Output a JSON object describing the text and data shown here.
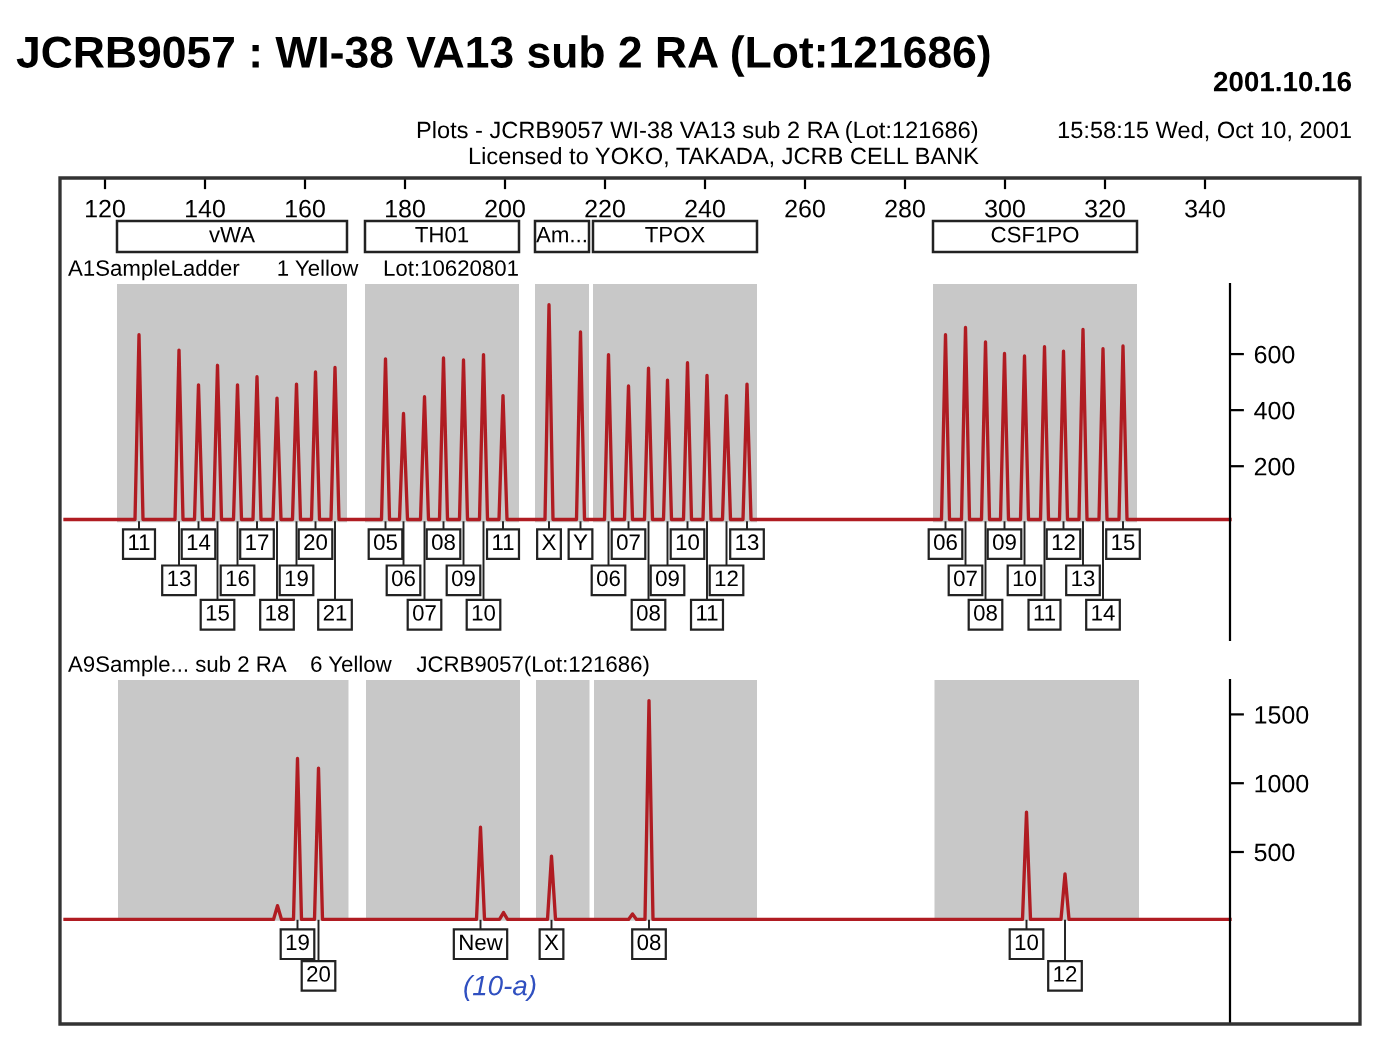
{
  "chart_data": [
    {
      "type": "line",
      "title": "JCRB9057 : WI-38 VA13 sub 2 RA (Lot:121686)",
      "subtitle": "A1SampleLadder      1 Yellow    Lot:10620801",
      "xlim": [
        111,
        371
      ],
      "xticks": [
        120,
        140,
        160,
        180,
        200,
        220,
        240,
        260,
        280,
        300,
        320,
        340
      ],
      "ylim": [
        -420,
        850
      ],
      "yticks": [
        200,
        400,
        600
      ],
      "grid": false,
      "bands": [
        {
          "axis": "x",
          "from": 122.4,
          "to": 168.4,
          "label": "vWA",
          "color": "#c8c8c8"
        },
        {
          "axis": "x",
          "from": 172,
          "to": 202.8,
          "label": "TH01",
          "color": "#c8c8c8"
        },
        {
          "axis": "x",
          "from": 206,
          "to": 216.8,
          "label": "Am...",
          "color": "#c8c8c8"
        },
        {
          "axis": "x",
          "from": 217.6,
          "to": 250.4,
          "label": "TPOX",
          "color": "#c8c8c8"
        },
        {
          "axis": "x",
          "from": 285.6,
          "to": 326.4,
          "label": "CSF1PO",
          "color": "#c8c8c8"
        }
      ],
      "series": [
        {
          "color": "#b01c22",
          "x": [
            112,
            126.0,
            126.8,
            127.6,
            134.0,
            134.8,
            135.6,
            137.9,
            138.7,
            139.5,
            141.7,
            142.5,
            143.3,
            145.7,
            146.5,
            147.3,
            149.6,
            150.4,
            151.2,
            153.6,
            154.4,
            155.2,
            157.5,
            158.3,
            159.1,
            161.3,
            162.1,
            162.9,
            165.2,
            166.0,
            166.8,
            175.3,
            176.1,
            176.9,
            178.9,
            179.7,
            180.5,
            183.1,
            183.9,
            184.7,
            186.9,
            187.7,
            188.5,
            190.9,
            191.7,
            192.5,
            194.9,
            195.7,
            196.5,
            198.8,
            199.6,
            200.4,
            208.0,
            208.8,
            209.6,
            214.3,
            215.1,
            215.9,
            219.9,
            220.7,
            221.5,
            223.9,
            224.7,
            225.5,
            227.9,
            228.7,
            229.5,
            231.7,
            232.5,
            233.3,
            235.7,
            236.5,
            237.3,
            239.6,
            240.4,
            241.2,
            243.5,
            244.3,
            245.1,
            247.6,
            248.4,
            249.2,
            287.3,
            288.1,
            288.9,
            291.3,
            292.1,
            292.9,
            295.3,
            296.1,
            296.9,
            299.1,
            299.9,
            300.7,
            303.1,
            303.9,
            304.7,
            307.1,
            307.9,
            308.7,
            310.9,
            311.7,
            312.5,
            314.8,
            315.6,
            316.4,
            318.8,
            319.6,
            320.4,
            322.8,
            323.6,
            324.4,
            345
          ],
          "values": [
            10,
            10,
            669,
            10,
            10,
            614,
            10,
            10,
            490,
            10,
            10,
            560,
            10,
            10,
            490,
            10,
            10,
            519,
            10,
            10,
            443,
            10,
            10,
            493,
            10,
            10,
            536,
            10,
            10,
            552,
            10,
            10,
            583,
            10,
            10,
            388,
            10,
            10,
            448,
            10,
            10,
            586,
            10,
            10,
            579,
            10,
            10,
            598,
            10,
            10,
            452,
            10,
            10,
            776,
            10,
            10,
            679,
            10,
            10,
            598,
            10,
            10,
            486,
            10,
            10,
            550,
            10,
            10,
            507,
            10,
            10,
            569,
            10,
            10,
            524,
            10,
            10,
            452,
            10,
            10,
            493,
            10,
            10,
            669,
            10,
            10,
            695,
            10,
            10,
            643,
            10,
            10,
            602,
            10,
            10,
            593,
            10,
            10,
            626,
            10,
            10,
            610,
            10,
            10,
            688,
            10,
            10,
            619,
            10,
            10,
            629,
            10,
            10
          ]
        }
      ],
      "annotations": [
        "2001.10.16",
        "Plots - JCRB9057 WI-38 VA13 sub 2 RA (Lot:121686)",
        "15:58:15 Wed, Oct 10, 2001",
        "Licensed to YOKO, TAKADA, JCRB CELL BANK",
        {
          "text": "11",
          "x": 126.8,
          "y": -78
        },
        {
          "text": "13",
          "x": 134.8,
          "y": -207
        },
        {
          "text": "14",
          "x": 138.7,
          "y": -78
        },
        {
          "text": "15",
          "x": 142.5,
          "y": -330
        },
        {
          "text": "16",
          "x": 146.5,
          "y": -207
        },
        {
          "text": "17",
          "x": 150.4,
          "y": -78
        },
        {
          "text": "18",
          "x": 154.4,
          "y": -330
        },
        {
          "text": "19",
          "x": 158.3,
          "y": -207
        },
        {
          "text": "20",
          "x": 162.1,
          "y": -78
        },
        {
          "text": "21",
          "x": 166.0,
          "y": -330
        },
        {
          "text": "05",
          "x": 176.1,
          "y": -78
        },
        {
          "text": "06",
          "x": 179.7,
          "y": -207
        },
        {
          "text": "07",
          "x": 183.9,
          "y": -330
        },
        {
          "text": "08",
          "x": 187.7,
          "y": -78
        },
        {
          "text": "09",
          "x": 191.7,
          "y": -207
        },
        {
          "text": "10",
          "x": 195.7,
          "y": -330
        },
        {
          "text": "11",
          "x": 199.6,
          "y": -78
        },
        {
          "text": "X",
          "x": 208.8,
          "y": -78
        },
        {
          "text": "Y",
          "x": 215.1,
          "y": -78
        },
        {
          "text": "06",
          "x": 220.7,
          "y": -207
        },
        {
          "text": "07",
          "x": 224.7,
          "y": -78
        },
        {
          "text": "08",
          "x": 228.7,
          "y": -330
        },
        {
          "text": "09",
          "x": 232.5,
          "y": -207
        },
        {
          "text": "10",
          "x": 236.5,
          "y": -78
        },
        {
          "text": "11",
          "x": 240.4,
          "y": -330
        },
        {
          "text": "12",
          "x": 244.3,
          "y": -207
        },
        {
          "text": "13",
          "x": 248.4,
          "y": -78
        },
        {
          "text": "06",
          "x": 288.1,
          "y": -78
        },
        {
          "text": "07",
          "x": 292.1,
          "y": -207
        },
        {
          "text": "08",
          "x": 296.1,
          "y": -330
        },
        {
          "text": "09",
          "x": 299.9,
          "y": -78
        },
        {
          "text": "10",
          "x": 303.9,
          "y": -207
        },
        {
          "text": "11",
          "x": 307.9,
          "y": -330
        },
        {
          "text": "12",
          "x": 311.7,
          "y": -78
        },
        {
          "text": "13",
          "x": 315.6,
          "y": -207
        },
        {
          "text": "14",
          "x": 319.6,
          "y": -330
        },
        {
          "text": "15",
          "x": 323.6,
          "y": -78
        }
      ]
    },
    {
      "type": "line",
      "subtitle": "A9Sample... sub 2 RA    6 Yellow    JCRB9057(Lot:121686)",
      "xlim": [
        111,
        371
      ],
      "ylim": [
        -750,
        1750
      ],
      "yticks": [
        500,
        1000,
        1500
      ],
      "tick_labels": "y",
      "grid": false,
      "bands": [
        {
          "axis": "x",
          "from": 122.6,
          "to": 168.7,
          "color": "#c8c8c8"
        },
        {
          "axis": "x",
          "from": 172.2,
          "to": 203,
          "color": "#c8c8c8"
        },
        {
          "axis": "x",
          "from": 206.2,
          "to": 216.9,
          "color": "#c8c8c8"
        },
        {
          "axis": "x",
          "from": 217.8,
          "to": 250.4,
          "color": "#c8c8c8"
        },
        {
          "axis": "x",
          "from": 285.9,
          "to": 326.8,
          "color": "#c8c8c8"
        }
      ],
      "series": [
        {
          "color": "#b01c22",
          "x": [
            112,
            153.7,
            154.5,
            155.3,
            157.7,
            158.5,
            159.3,
            161.9,
            162.7,
            163.5,
            194.3,
            195.1,
            195.9,
            198.9,
            199.7,
            200.5,
            208.5,
            209.3,
            210.1,
            224.7,
            225.5,
            226.3,
            228.0,
            228.8,
            229.6,
            303.5,
            304.3,
            305.1,
            311.2,
            312.0,
            312.8,
            345
          ],
          "values": [
            10,
            10,
            110,
            10,
            10,
            1180,
            10,
            10,
            1110,
            10,
            10,
            680,
            10,
            10,
            60,
            10,
            10,
            470,
            10,
            10,
            50,
            10,
            10,
            1600,
            10,
            10,
            790,
            10,
            10,
            340,
            10,
            10
          ]
        }
      ],
      "annotations": [
        {
          "text": "19",
          "x": 158.5,
          "y": -170
        },
        {
          "text": "20",
          "x": 162.7,
          "y": -400
        },
        {
          "text": "New",
          "x": 195.1,
          "y": -170
        },
        {
          "text": "X",
          "x": 209.3,
          "y": -170
        },
        {
          "text": "08",
          "x": 228.8,
          "y": -170
        },
        {
          "text": "10",
          "x": 304.3,
          "y": -170
        },
        {
          "text": "12",
          "x": 312.0,
          "y": -400
        },
        "(10-a)"
      ]
    }
  ]
}
